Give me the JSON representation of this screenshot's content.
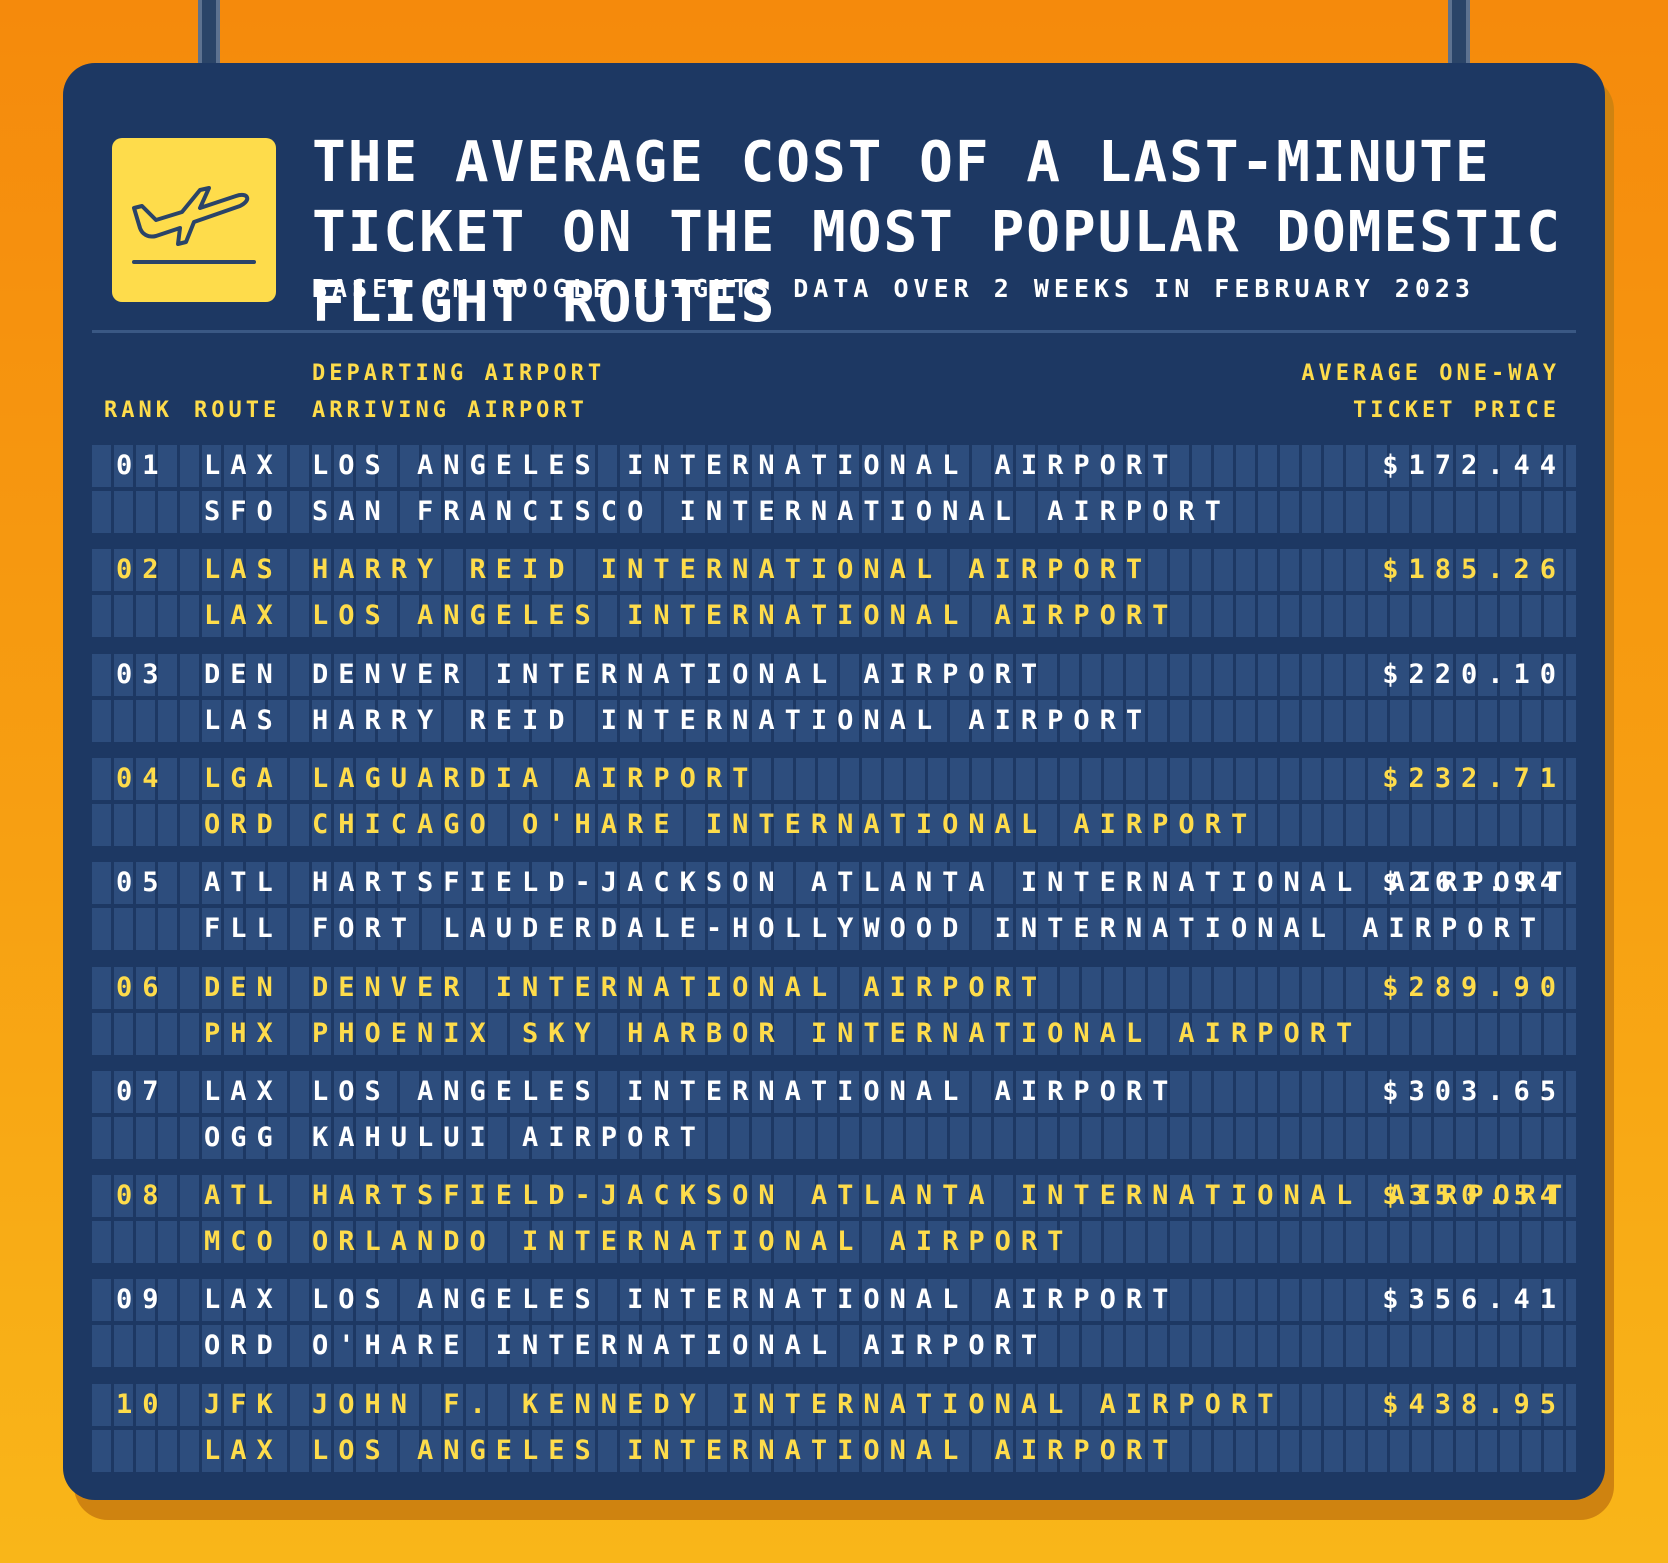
{
  "header": {
    "title": "THE AVERAGE COST OF A LAST-MINUTE TICKET ON THE MOST POPULAR DOMESTIC FLIGHT ROUTES",
    "subtitle": "BASED ON GOOGLE FLIGHTS DATA OVER 2 WEEKS IN FEBRUARY 2023",
    "logo_icon": "airplane-takeoff-icon"
  },
  "columns": {
    "rank": "RANK",
    "route": "ROUTE",
    "airport_line1": "DEPARTING AIRPORT",
    "airport_line2": "ARRIVING AIRPORT",
    "price_line1": "AVERAGE ONE-WAY",
    "price_line2": "TICKET PRICE"
  },
  "colors": {
    "board": "#1d3863",
    "cell": "#2d4d7d",
    "yellow": "#fedc4b",
    "background": "#f7a012"
  },
  "rows": [
    {
      "rank": "01",
      "from_code": "LAX",
      "to_code": "SFO",
      "from_airport": "LOS ANGELES INTERNATIONAL AIRPORT",
      "to_airport": "SAN FRANCISCO INTERNATIONAL AIRPORT",
      "price": "$172.44"
    },
    {
      "rank": "02",
      "from_code": "LAS",
      "to_code": "LAX",
      "from_airport": "HARRY REID INTERNATIONAL AIRPORT",
      "to_airport": "LOS ANGELES INTERNATIONAL AIRPORT",
      "price": "$185.26"
    },
    {
      "rank": "03",
      "from_code": "DEN",
      "to_code": "LAS",
      "from_airport": "DENVER INTERNATIONAL AIRPORT",
      "to_airport": "HARRY REID INTERNATIONAL AIRPORT",
      "price": "$220.10"
    },
    {
      "rank": "04",
      "from_code": "LGA",
      "to_code": "ORD",
      "from_airport": "LAGUARDIA AIRPORT",
      "to_airport": "CHICAGO O'HARE INTERNATIONAL AIRPORT",
      "price": "$232.71"
    },
    {
      "rank": "05",
      "from_code": "ATL",
      "to_code": "FLL",
      "from_airport": "HARTSFIELD-JACKSON ATLANTA INTERNATIONAL AIRPORT",
      "to_airport": "FORT LAUDERDALE-HOLLYWOOD INTERNATIONAL AIRPORT",
      "price": "$261.94"
    },
    {
      "rank": "06",
      "from_code": "DEN",
      "to_code": "PHX",
      "from_airport": "DENVER INTERNATIONAL AIRPORT",
      "to_airport": "PHOENIX SKY HARBOR INTERNATIONAL AIRPORT",
      "price": "$289.90"
    },
    {
      "rank": "07",
      "from_code": "LAX",
      "to_code": "OGG",
      "from_airport": "LOS ANGELES INTERNATIONAL AIRPORT",
      "to_airport": "KAHULUI AIRPORT",
      "price": "$303.65"
    },
    {
      "rank": "08",
      "from_code": "ATL",
      "to_code": "MCO",
      "from_airport": "HARTSFIELD-JACKSON ATLANTA INTERNATIONAL AIRPORT",
      "to_airport": "ORLANDO INTERNATIONAL AIRPORT",
      "price": "$350.54"
    },
    {
      "rank": "09",
      "from_code": "LAX",
      "to_code": "ORD",
      "from_airport": "LOS ANGELES INTERNATIONAL AIRPORT",
      "to_airport": "O'HARE INTERNATIONAL AIRPORT",
      "price": "$356.41"
    },
    {
      "rank": "10",
      "from_code": "JFK",
      "to_code": "LAX",
      "from_airport": "JOHN F. KENNEDY INTERNATIONAL AIRPORT",
      "to_airport": "LOS ANGELES INTERNATIONAL AIRPORT",
      "price": "$438.95"
    }
  ]
}
